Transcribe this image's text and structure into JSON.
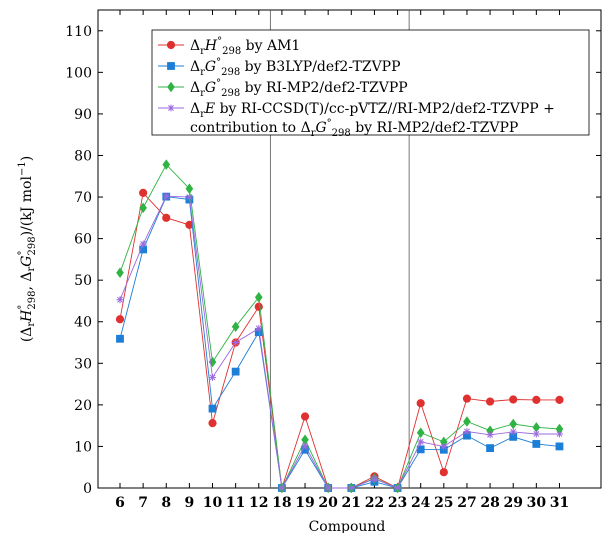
{
  "chart_data": {
    "type": "line",
    "title": "",
    "xlabel": "Compound",
    "ylabel": {
      "pre": "(Δ",
      "r1": "r",
      "H": "H",
      "sup1": "°",
      "sub1": "298",
      "mid": ", Δ",
      "r2": "r",
      "G": "G",
      "sup2": "°",
      "sub2": "298",
      "post": ")/(kJ mol",
      "exp": "−1",
      "end": ")"
    },
    "ylim": [
      0,
      115
    ],
    "yticks": [
      0,
      10,
      20,
      30,
      40,
      50,
      60,
      70,
      80,
      90,
      100,
      110
    ],
    "categories": [
      "6",
      "7",
      "8",
      "9",
      "10",
      "11",
      "12",
      "18",
      "19",
      "20",
      "21",
      "22",
      "23",
      "24",
      "25",
      "27",
      "28",
      "29",
      "30",
      "31"
    ],
    "separators_after_index": [
      6,
      12
    ],
    "legend_position": "top-right",
    "series": [
      {
        "name": "ΔrH°298 by AM1",
        "legend": [
          {
            "t": "Δ"
          },
          {
            "t": "r",
            "sub": true
          },
          {
            "t": "H",
            "it": true
          },
          {
            "t": "°",
            "sup": true
          },
          {
            "t": "298",
            "sub": true
          },
          {
            "t": " by AM1"
          }
        ],
        "color": "#e03131",
        "marker": "circle",
        "values": [
          40.6,
          71.0,
          65.0,
          63.3,
          15.6,
          35.0,
          43.6,
          0.0,
          17.2,
          0.0,
          0.0,
          2.8,
          0.0,
          20.4,
          3.8,
          21.5,
          20.8,
          21.3,
          21.2,
          21.2
        ]
      },
      {
        "name": "ΔrG°298 by B3LYP/def2-TZVPP",
        "legend": [
          {
            "t": "Δ"
          },
          {
            "t": "r",
            "sub": true
          },
          {
            "t": "G",
            "it": true
          },
          {
            "t": "°",
            "sup": true
          },
          {
            "t": "298",
            "sub": true
          },
          {
            "t": " by B3LYP/def2-TZVPP"
          }
        ],
        "color": "#1c7ed6",
        "marker": "square",
        "values": [
          35.9,
          57.4,
          70.1,
          69.4,
          19.1,
          28.0,
          37.5,
          0.0,
          9.2,
          0.0,
          0.0,
          1.5,
          0.0,
          9.3,
          9.2,
          12.6,
          9.6,
          12.3,
          10.6,
          10.0
        ]
      },
      {
        "name": "ΔrG°298 by RI-MP2/def2-TZVPP",
        "legend": [
          {
            "t": "Δ"
          },
          {
            "t": "r",
            "sub": true
          },
          {
            "t": "G",
            "it": true
          },
          {
            "t": "°",
            "sup": true
          },
          {
            "t": "298",
            "sub": true
          },
          {
            "t": " by RI-MP2/def2-TZVPP"
          }
        ],
        "color": "#2fb344",
        "marker": "diamond",
        "values": [
          51.8,
          67.4,
          77.8,
          72.0,
          30.3,
          38.8,
          45.9,
          0.0,
          11.6,
          0.0,
          0.0,
          2.3,
          0.0,
          13.3,
          11.1,
          16.0,
          13.8,
          15.4,
          14.6,
          14.2
        ]
      },
      {
        "name": "ΔrE by RI-CCSD(T)/cc-pVTZ//RI-MP2/def2-TZVPP + contribution to ΔrG°298 by RI-MP2/def2-TZVPP",
        "legend": [
          {
            "t": "Δ"
          },
          {
            "t": "r",
            "sub": true
          },
          {
            "t": "E",
            "it": true
          },
          {
            "t": " by RI-CCSD(T)/cc-pVTZ//RI-MP2/def2-TZVPP +"
          }
        ],
        "legend2": [
          {
            "t": "contribution to Δ"
          },
          {
            "t": "r",
            "sub": true
          },
          {
            "t": "G",
            "it": true
          },
          {
            "t": "°",
            "sup": true
          },
          {
            "t": "298",
            "sub": true
          },
          {
            "t": " by RI-MP2/def2-TZVPP"
          }
        ],
        "color": "#9c6ade",
        "marker": "star",
        "values": [
          45.3,
          58.7,
          70.2,
          70.0,
          26.6,
          35.0,
          38.4,
          0.0,
          10.2,
          0.0,
          0.0,
          2.2,
          0.0,
          11.1,
          10.0,
          13.6,
          12.8,
          13.5,
          13.0,
          13.0
        ]
      }
    ]
  }
}
